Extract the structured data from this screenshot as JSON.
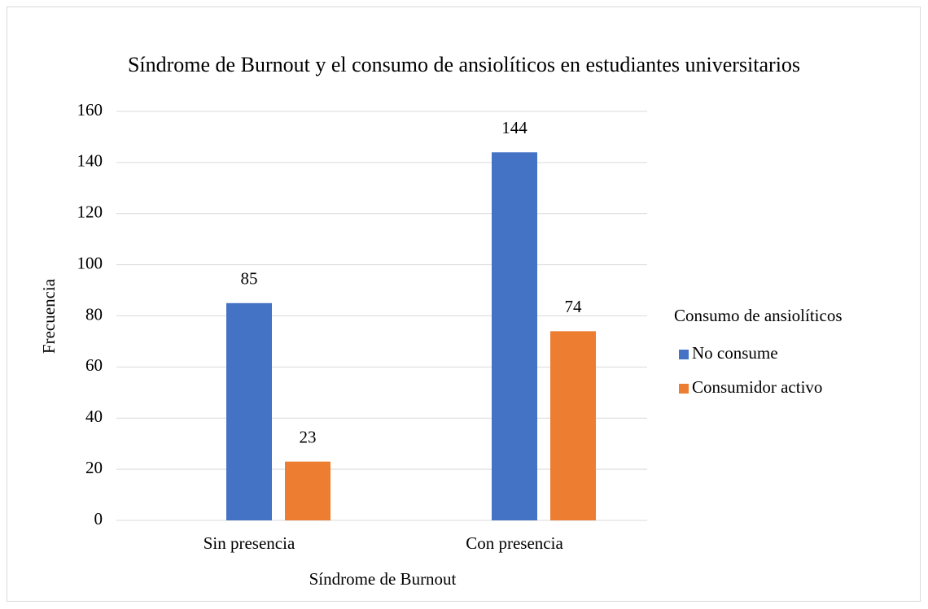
{
  "chart_data": {
    "type": "bar",
    "title": "Síndrome de Burnout y el consumo de ansiolíticos en estudiantes universitarios",
    "x_label": "Síndrome de Burnout",
    "y_label": "Frecuencia",
    "legend_title": "Consumo de ansiolíticos",
    "legend": "right",
    "categories": [
      "Sin presencia",
      "Con presencia"
    ],
    "series": [
      {
        "name": "No consume",
        "color": "#4472c4",
        "values": [
          85,
          144
        ]
      },
      {
        "name": "Consumidor activo",
        "color": "#ed7d31",
        "values": [
          23,
          74
        ]
      }
    ],
    "ylim": [
      0,
      160
    ],
    "yticks": [
      0,
      20,
      40,
      60,
      80,
      100,
      120,
      140,
      160
    ],
    "grid": true
  }
}
